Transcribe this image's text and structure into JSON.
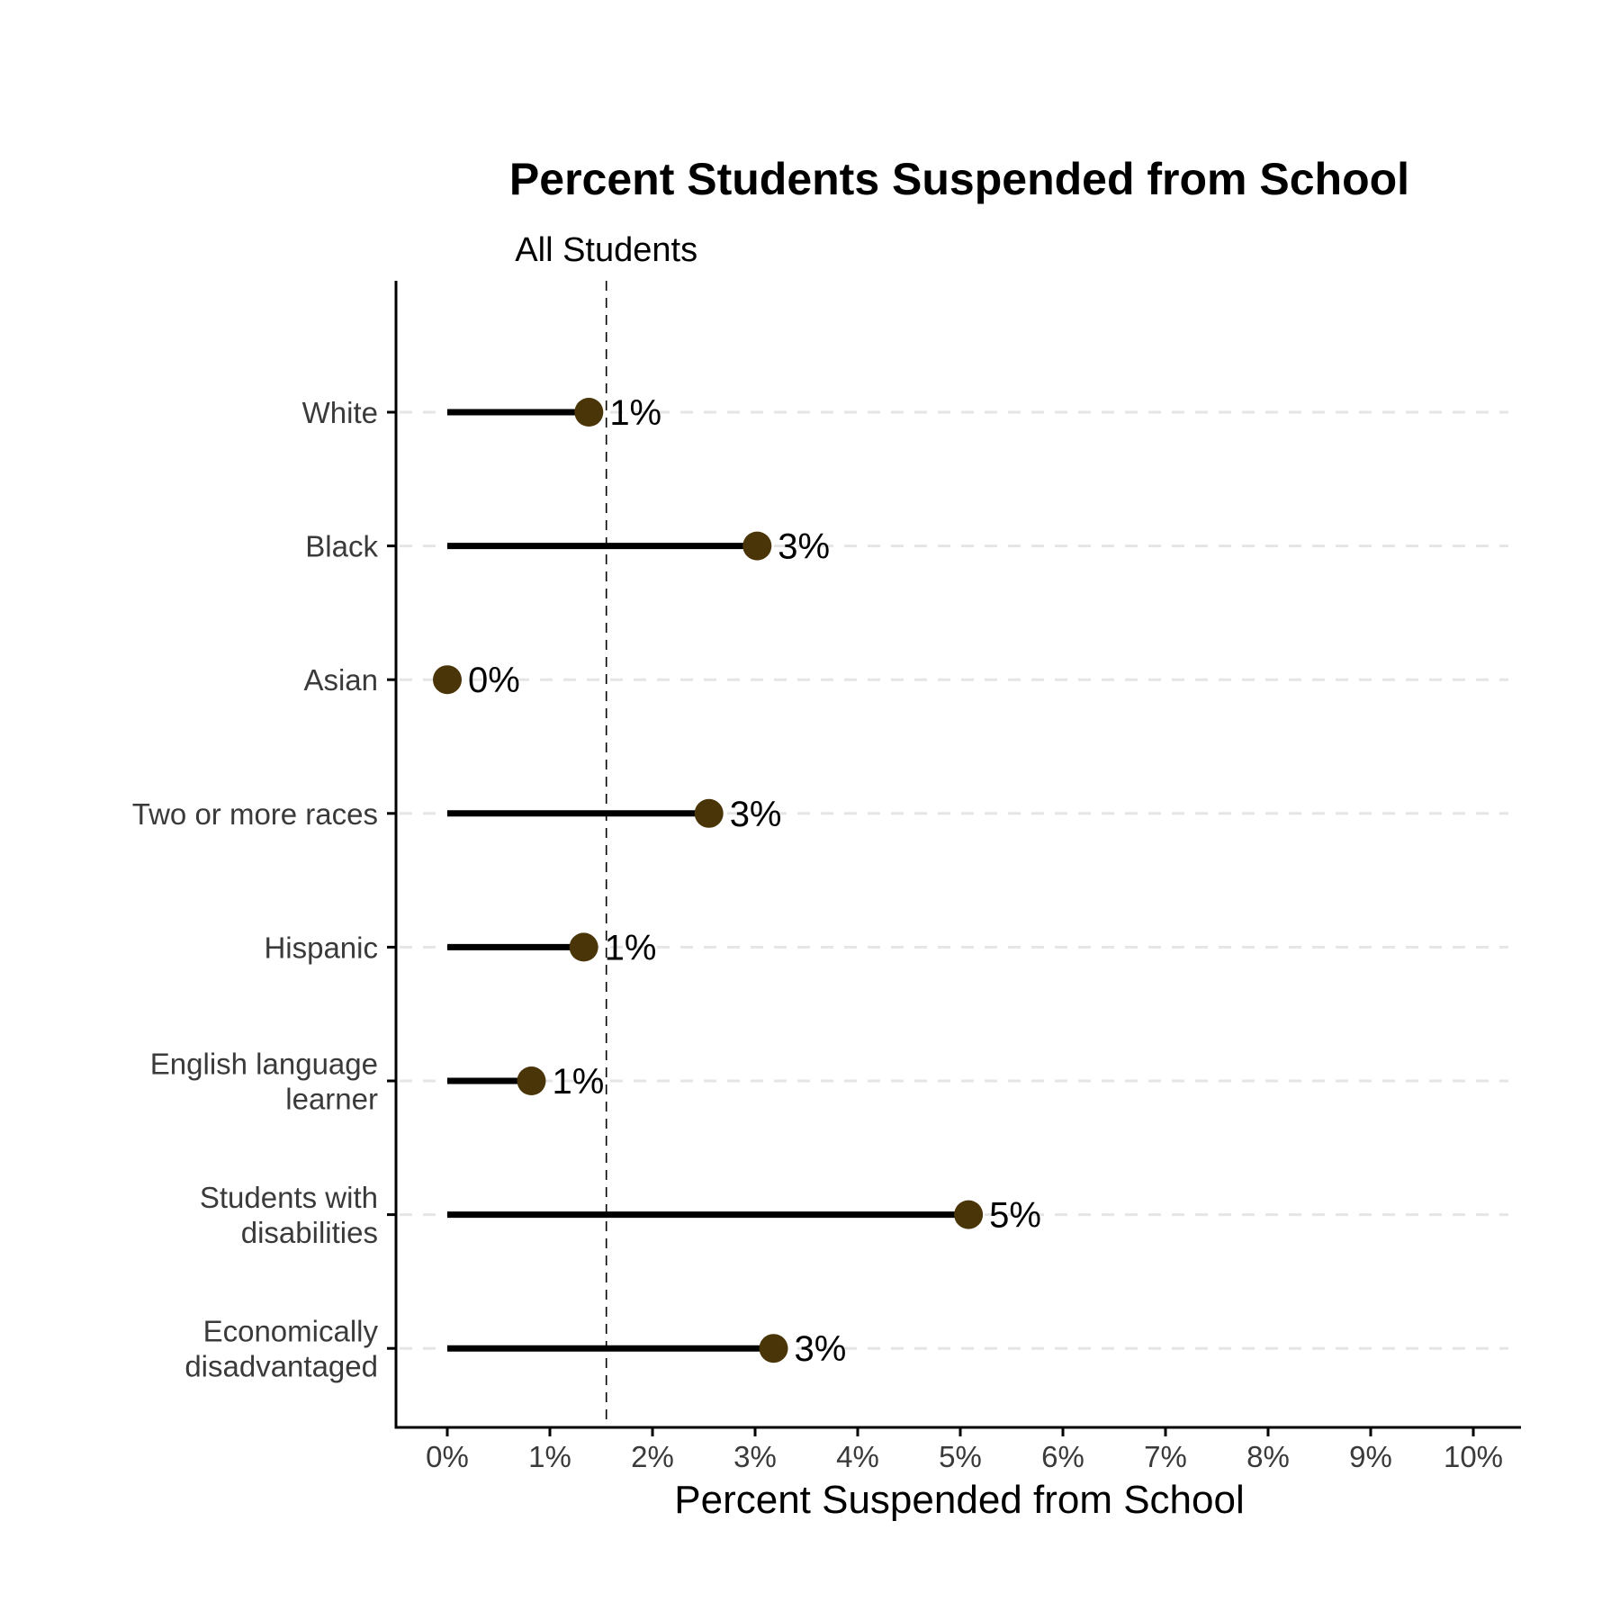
{
  "chart_data": {
    "type": "lollipop",
    "title": "Percent Students Suspended from School",
    "xlabel": "Percent Suspended from School",
    "ylabel": "",
    "xlim": [
      -0.5,
      10.5
    ],
    "x_ticks": [
      0,
      1,
      2,
      3,
      4,
      5,
      6,
      7,
      8,
      9,
      10
    ],
    "x_tick_labels": [
      "0%",
      "1%",
      "2%",
      "3%",
      "4%",
      "5%",
      "6%",
      "7%",
      "8%",
      "9%",
      "10%"
    ],
    "categories": [
      [
        "White"
      ],
      [
        "Black"
      ],
      [
        "Asian"
      ],
      [
        "Two or more races"
      ],
      [
        "Hispanic"
      ],
      [
        "English language",
        "learner"
      ],
      [
        "Students with",
        "disabilities"
      ],
      [
        "Economically",
        "disadvantaged"
      ]
    ],
    "values": [
      1.38,
      3.02,
      0.0,
      2.55,
      1.33,
      0.82,
      5.08,
      3.18
    ],
    "value_labels": [
      "1%",
      "3%",
      "0%",
      "3%",
      "1%",
      "1%",
      "5%",
      "3%"
    ],
    "reference_line": {
      "label": "All Students",
      "value": 1.55
    },
    "grid": "horizontal dashed",
    "colors": {
      "point": "#4a3508",
      "stem": "#000000",
      "grid": "#e5e5e5",
      "axis": "#000000"
    }
  }
}
